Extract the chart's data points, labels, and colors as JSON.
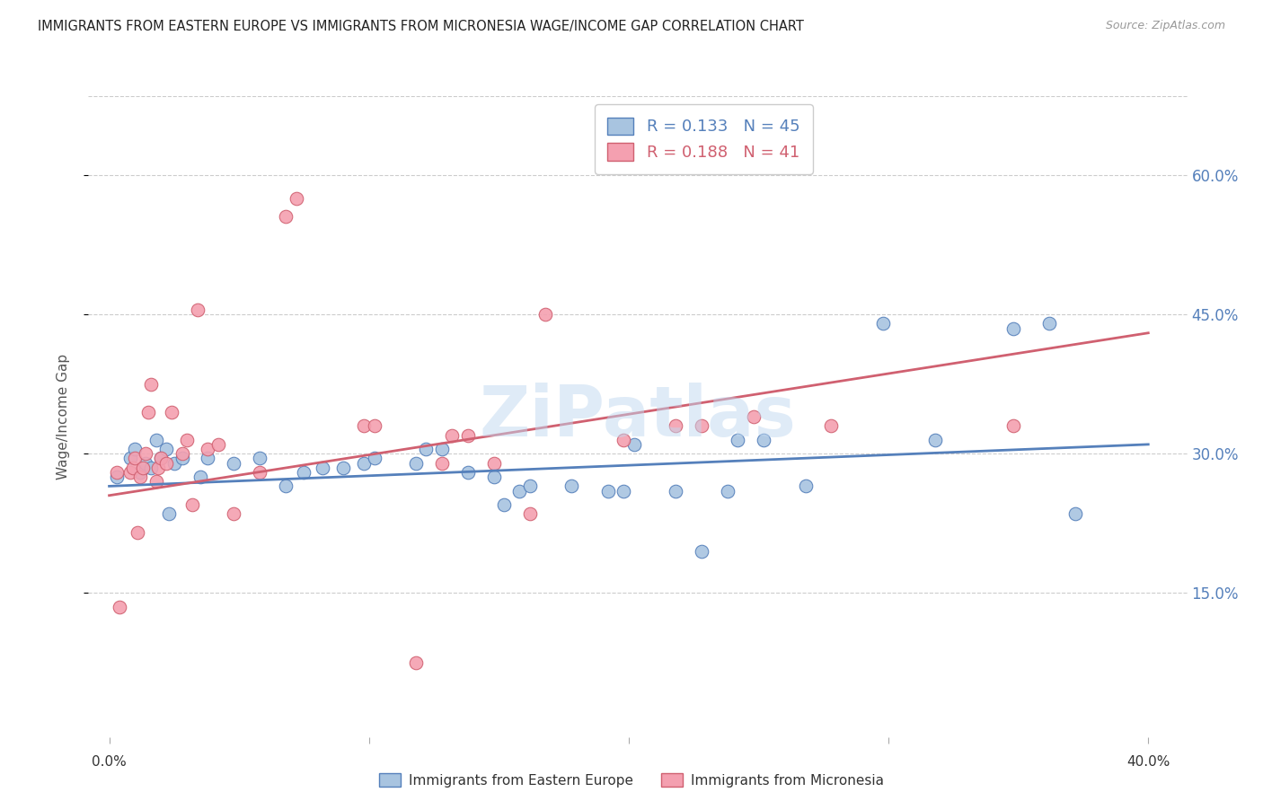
{
  "title": "IMMIGRANTS FROM EASTERN EUROPE VS IMMIGRANTS FROM MICRONESIA WAGE/INCOME GAP CORRELATION CHART",
  "source": "Source: ZipAtlas.com",
  "ylabel": "Wage/Income Gap",
  "ytick_labels": [
    "15.0%",
    "30.0%",
    "45.0%",
    "60.0%"
  ],
  "ytick_values": [
    0.15,
    0.3,
    0.45,
    0.6
  ],
  "xtick_values": [
    0.0,
    0.1,
    0.2,
    0.3,
    0.4
  ],
  "xlim": [
    -0.008,
    0.415
  ],
  "ylim": [
    -0.005,
    0.685
  ],
  "legend_label1": "Immigrants from Eastern Europe",
  "legend_label2": "Immigrants from Micronesia",
  "r1": 0.133,
  "n1": 45,
  "r2": 0.188,
  "n2": 41,
  "color_blue": "#a8c4e0",
  "color_pink": "#f4a0b0",
  "line_color_blue": "#5580bb",
  "line_color_pink": "#d06070",
  "watermark": "ZiPatlas",
  "blue_points_x": [
    0.003,
    0.008,
    0.01,
    0.012,
    0.014,
    0.016,
    0.018,
    0.02,
    0.022,
    0.023,
    0.025,
    0.028,
    0.035,
    0.038,
    0.048,
    0.058,
    0.068,
    0.075,
    0.082,
    0.09,
    0.098,
    0.102,
    0.118,
    0.122,
    0.128,
    0.138,
    0.148,
    0.152,
    0.158,
    0.162,
    0.178,
    0.192,
    0.198,
    0.202,
    0.218,
    0.228,
    0.238,
    0.242,
    0.252,
    0.268,
    0.298,
    0.318,
    0.348,
    0.362,
    0.372
  ],
  "blue_points_y": [
    0.275,
    0.295,
    0.305,
    0.28,
    0.29,
    0.285,
    0.315,
    0.295,
    0.305,
    0.235,
    0.29,
    0.295,
    0.275,
    0.295,
    0.29,
    0.295,
    0.265,
    0.28,
    0.285,
    0.285,
    0.29,
    0.295,
    0.29,
    0.305,
    0.305,
    0.28,
    0.275,
    0.245,
    0.26,
    0.265,
    0.265,
    0.26,
    0.26,
    0.31,
    0.26,
    0.195,
    0.26,
    0.315,
    0.315,
    0.265,
    0.44,
    0.315,
    0.435,
    0.44,
    0.235
  ],
  "pink_points_x": [
    0.003,
    0.004,
    0.008,
    0.009,
    0.01,
    0.011,
    0.012,
    0.013,
    0.014,
    0.015,
    0.016,
    0.018,
    0.019,
    0.02,
    0.022,
    0.024,
    0.028,
    0.03,
    0.032,
    0.034,
    0.038,
    0.042,
    0.048,
    0.058,
    0.068,
    0.072,
    0.098,
    0.102,
    0.118,
    0.128,
    0.132,
    0.138,
    0.148,
    0.162,
    0.168,
    0.198,
    0.218,
    0.228,
    0.248,
    0.278,
    0.348
  ],
  "pink_points_y": [
    0.28,
    0.135,
    0.28,
    0.285,
    0.295,
    0.215,
    0.275,
    0.285,
    0.3,
    0.345,
    0.375,
    0.27,
    0.285,
    0.295,
    0.29,
    0.345,
    0.3,
    0.315,
    0.245,
    0.455,
    0.305,
    0.31,
    0.235,
    0.28,
    0.555,
    0.575,
    0.33,
    0.33,
    0.075,
    0.29,
    0.32,
    0.32,
    0.29,
    0.235,
    0.45,
    0.315,
    0.33,
    0.33,
    0.34,
    0.33,
    0.33
  ],
  "blue_line_x": [
    0.0,
    0.4
  ],
  "blue_line_y": [
    0.265,
    0.31
  ],
  "pink_line_x": [
    0.0,
    0.4
  ],
  "pink_line_y": [
    0.255,
    0.43
  ]
}
